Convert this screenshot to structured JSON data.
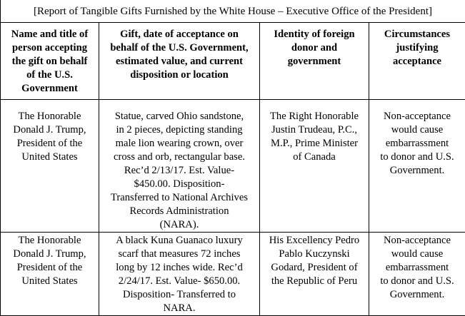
{
  "title": "[Report of Tangible Gifts Furnished by the White House – Executive Office of the President]",
  "columns": [
    "Name and title of\nperson accepting\nthe gift on behalf\nof the U.S.\nGovernment",
    "Gift, date of acceptance on\nbehalf of the U.S. Government,\nestimated value, and current\ndisposition or location",
    "Identity of foreign\ndonor and\ngovernment",
    "Circumstances\njustifying\nacceptance"
  ],
  "rows": [
    {
      "recipient": "The Honorable\nDonald J. Trump,\nPresident of the\nUnited States",
      "gift": "Statue, carved Ohio sandstone,\nin 2 pieces, depicting standing\nmale lion wearing crown, over\ncross and orb, rectangular base.\nRec’d 2/13/17. Est. Value-\n$450.00. Disposition-\nTransferred to National Archives\nRecords Administration\n(NARA).",
      "donor": "The Right Honorable\nJustin Trudeau, P.C.,\nM.P., Prime Minister\nof Canada",
      "circumstances": "Non-acceptance\nwould cause\nembarrassment\nto donor and U.S.\nGovernment."
    },
    {
      "recipient": "The Honorable\nDonald J. Trump,\nPresident of the\nUnited States",
      "gift": "A black Kuna Guanaco luxury\nscarf that measures 72 inches\nlong by 12 inches wide. Rec’d\n2/24/17. Est. Value- $650.00.\nDisposition- Transferred to\nNARA.",
      "donor": "His Excellency Pedro\nPablo Kuczynski\nGodard, President of\nthe Republic of Peru",
      "circumstances": "Non-acceptance\nwould cause\nembarrassment\nto donor and U.S.\nGovernment."
    }
  ]
}
